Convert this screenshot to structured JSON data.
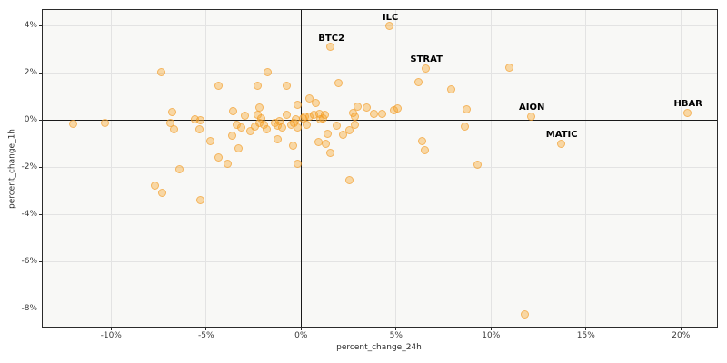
{
  "chart_data": {
    "type": "scatter",
    "title": "",
    "xlabel": "percent_change_24h",
    "ylabel": "percent_change_1h",
    "xlim": [
      -13.6,
      21.9
    ],
    "ylim": [
      -8.75,
      4.67
    ],
    "grid": true,
    "zero_lines": true,
    "x_ticks": {
      "values": [
        -10,
        -5,
        0,
        5,
        10,
        15,
        20
      ],
      "labels": [
        "-10%",
        "-5%",
        "0%",
        "5%",
        "10%",
        "15%",
        "20%"
      ]
    },
    "y_ticks": {
      "values": [
        4,
        2,
        0,
        -2,
        -4,
        -6,
        -8
      ],
      "labels": [
        "4%",
        "2%",
        "0%",
        "-2%",
        "-4%",
        "-6%",
        "-8%"
      ]
    },
    "colors": {
      "point_fill": "rgba(247,166,42,0.40)",
      "point_edge": "rgba(243,153,35,0.55)",
      "grid": "#e3e3e3",
      "zero_line": "#1a1a1a",
      "plot_background": "#f8f8f6",
      "spine": "#2b2b2b",
      "tick_text": "#3a3a3a",
      "annotation_text": "#000000"
    },
    "points": [
      [
        -12.02,
        -0.15
      ],
      [
        -10.33,
        -0.12
      ],
      [
        -7.35,
        2.03
      ],
      [
        -4.32,
        1.45
      ],
      [
        -6.77,
        0.35
      ],
      [
        -6.87,
        -0.1
      ],
      [
        -6.7,
        -0.4
      ],
      [
        -5.57,
        0.05
      ],
      [
        -5.31,
        0.0
      ],
      [
        -5.36,
        -0.37
      ],
      [
        -4.79,
        -0.87
      ],
      [
        -4.33,
        -1.56
      ],
      [
        -6.42,
        -2.08
      ],
      [
        -7.67,
        -2.78
      ],
      [
        -7.31,
        -3.06
      ],
      [
        -5.32,
        -3.4
      ],
      [
        -3.88,
        -1.84
      ],
      [
        -3.59,
        0.4
      ],
      [
        -3.62,
        -0.67
      ],
      [
        -3.4,
        -0.18
      ],
      [
        -3.16,
        -0.3
      ],
      [
        -3.3,
        -1.18
      ],
      [
        -2.97,
        0.2
      ],
      [
        -2.68,
        -0.48
      ],
      [
        -2.44,
        -0.28
      ],
      [
        -2.3,
        0.21
      ],
      [
        -2.2,
        0.55
      ],
      [
        -2.3,
        1.44
      ],
      [
        -1.77,
        2.05
      ],
      [
        -2.11,
        0.09
      ],
      [
        -2.21,
        -0.12
      ],
      [
        -1.96,
        -0.18
      ],
      [
        -1.82,
        -0.37
      ],
      [
        -1.39,
        -0.1
      ],
      [
        -1.24,
        -0.22
      ],
      [
        -1.15,
        -0.03
      ],
      [
        -1.24,
        -0.8
      ],
      [
        -1.0,
        -0.3
      ],
      [
        -0.77,
        1.44
      ],
      [
        -0.76,
        0.24
      ],
      [
        -0.53,
        -0.18
      ],
      [
        -0.38,
        -0.1
      ],
      [
        -0.29,
        0.02
      ],
      [
        -0.43,
        -1.06
      ],
      [
        -0.19,
        0.67
      ],
      [
        -0.19,
        -0.3
      ],
      [
        -0.19,
        -1.84
      ],
      [
        0.1,
        0.09
      ],
      [
        0.19,
        0.17
      ],
      [
        0.29,
        -0.18
      ],
      [
        0.43,
        0.94
      ],
      [
        0.45,
        0.17
      ],
      [
        0.67,
        0.22
      ],
      [
        0.77,
        0.74
      ],
      [
        0.96,
        0.28
      ],
      [
        1.0,
        0.02
      ],
      [
        1.15,
        0.09
      ],
      [
        1.25,
        0.21
      ],
      [
        0.91,
        -0.94
      ],
      [
        1.39,
        -0.56
      ],
      [
        1.31,
        -1.0
      ],
      [
        1.55,
        -1.38
      ],
      [
        1.55,
        3.1
      ],
      [
        1.96,
        1.56
      ],
      [
        1.87,
        -0.22
      ],
      [
        2.2,
        -0.6
      ],
      [
        2.55,
        -2.55
      ],
      [
        2.56,
        -0.42
      ],
      [
        2.74,
        0.29
      ],
      [
        2.82,
        0.15
      ],
      [
        2.83,
        -0.2
      ],
      [
        2.97,
        0.59
      ],
      [
        3.44,
        0.55
      ],
      [
        3.86,
        0.26
      ],
      [
        4.26,
        0.26
      ],
      [
        4.66,
        3.98
      ],
      [
        4.88,
        0.42
      ],
      [
        5.06,
        0.5
      ],
      [
        6.17,
        1.63
      ],
      [
        6.55,
        2.2
      ],
      [
        6.36,
        -0.9
      ],
      [
        6.51,
        -1.26
      ],
      [
        7.89,
        1.32
      ],
      [
        8.71,
        0.47
      ],
      [
        8.64,
        -0.26
      ],
      [
        9.29,
        -1.9
      ],
      [
        10.98,
        2.24
      ],
      [
        12.1,
        0.17
      ],
      [
        13.68,
        -0.99
      ],
      [
        20.33,
        0.32
      ],
      [
        11.77,
        -8.25
      ]
    ],
    "annotations": [
      {
        "label": "ILC",
        "x": 4.66,
        "y": 3.98
      },
      {
        "label": "BTC2",
        "x": 1.55,
        "y": 3.1
      },
      {
        "label": "STRAT",
        "x": 6.55,
        "y": 2.2
      },
      {
        "label": "AION",
        "x": 12.1,
        "y": 0.17
      },
      {
        "label": "MATIC",
        "x": 13.68,
        "y": -0.99
      },
      {
        "label": "HBAR",
        "x": 20.33,
        "y": 0.32
      }
    ]
  }
}
